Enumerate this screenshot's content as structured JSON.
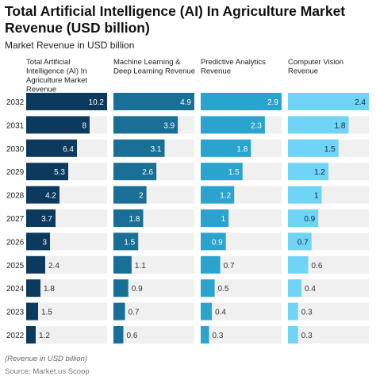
{
  "chart_data": {
    "type": "bar",
    "title": "Total Artificial Intelligence (AI) In Agriculture Market Revenue (USD billion)",
    "subtitle": "Market Revenue in USD billion",
    "categories": [
      "2032",
      "2031",
      "2030",
      "2029",
      "2028",
      "2027",
      "2026",
      "2025",
      "2024",
      "2023",
      "2022"
    ],
    "series": [
      {
        "name": "Total Artificial Intelligence (AI) In Agriculture Market Revenue",
        "color": "#0c3a5e",
        "values": [
          10.2,
          8,
          6.4,
          5.3,
          4.2,
          3.7,
          3,
          2.4,
          1.8,
          1.5,
          1.2
        ]
      },
      {
        "name": "Machine Learning & Deep Learning Revenue",
        "color": "#1a6f96",
        "values": [
          4.9,
          3.9,
          3.1,
          2.6,
          2,
          1.8,
          1.5,
          1.1,
          0.9,
          0.7,
          0.6
        ]
      },
      {
        "name": "Predictive Analytics Revenue",
        "color": "#2aa3cf",
        "values": [
          2.9,
          2.3,
          1.8,
          1.5,
          1.2,
          1,
          0.9,
          0.7,
          0.5,
          0.4,
          0.3
        ]
      },
      {
        "name": "Computer Vision Revenue",
        "color": "#6fd4f5",
        "values": [
          2.4,
          1.8,
          1.5,
          1.2,
          1,
          0.9,
          0.7,
          0.6,
          0.4,
          0.3,
          0.3
        ]
      }
    ],
    "footnote": "(Revenue in USD billion)",
    "source": "Source: Market.us Scoop",
    "track_color": "#f0f0f0"
  }
}
